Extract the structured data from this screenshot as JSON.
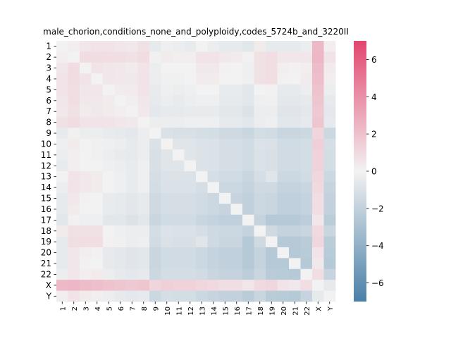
{
  "chart_data": {
    "type": "heatmap",
    "title": "male_chorion,conditions_none_and_polyploidy,codes_5724b_and_3220II",
    "xlabel": "",
    "ylabel": "",
    "categories": [
      "1",
      "2",
      "3",
      "4",
      "5",
      "6",
      "7",
      "8",
      "9",
      "10",
      "11",
      "12",
      "13",
      "14",
      "15",
      "16",
      "17",
      "18",
      "19",
      "20",
      "21",
      "22",
      "X",
      "Y"
    ],
    "colorbar": {
      "range": [
        -7,
        7
      ],
      "ticks": [
        -6,
        -4,
        -2,
        0,
        2,
        4,
        6
      ],
      "tick_labels": [
        "−6",
        "−4",
        "−2",
        "0",
        "2",
        "4",
        "6"
      ],
      "colors": {
        "negative": "#4a7fa7",
        "neutral": "#f2f2f2",
        "positive": "#e2466f"
      }
    },
    "values": [
      [
        0.0,
        0.2,
        0.5,
        0.6,
        0.6,
        0.5,
        0.4,
        0.7,
        -0.5,
        -0.2,
        -0.3,
        -0.4,
        0.0,
        -0.3,
        -0.5,
        -0.5,
        -0.7,
        0.3,
        -0.5,
        -0.5,
        -0.5,
        -0.3,
        2.3,
        0.2
      ],
      [
        0.2,
        0.0,
        0.9,
        0.9,
        0.8,
        0.8,
        0.7,
        0.9,
        -0.1,
        0.3,
        0.2,
        0.2,
        0.6,
        0.6,
        0.4,
        0.3,
        0.1,
        0.7,
        0.8,
        0.5,
        0.5,
        0.5,
        2.4,
        0.6
      ],
      [
        0.5,
        0.9,
        0.0,
        0.6,
        0.5,
        0.4,
        0.3,
        0.6,
        -0.3,
        0.0,
        0.0,
        0.0,
        0.4,
        0.4,
        0.1,
        0.0,
        -0.2,
        0.7,
        0.8,
        0.2,
        0.1,
        0.2,
        2.2,
        0.3
      ],
      [
        0.6,
        0.9,
        0.6,
        0.0,
        0.5,
        0.4,
        0.4,
        0.6,
        -0.3,
        -0.1,
        -0.1,
        0.0,
        0.3,
        0.3,
        0.0,
        0.0,
        -0.2,
        0.7,
        0.8,
        0.1,
        0.0,
        0.3,
        2.1,
        0.2
      ],
      [
        0.6,
        0.8,
        0.5,
        0.5,
        0.0,
        0.3,
        0.3,
        0.6,
        -0.4,
        -0.2,
        -0.3,
        -0.2,
        0.0,
        0.0,
        -0.4,
        -0.4,
        -0.7,
        0.0,
        0.1,
        -0.5,
        -0.5,
        -0.3,
        1.9,
        -0.3
      ],
      [
        0.5,
        0.8,
        0.4,
        0.4,
        0.3,
        0.0,
        0.2,
        0.5,
        -0.5,
        -0.3,
        -0.4,
        -0.3,
        -0.2,
        -0.2,
        -0.5,
        -0.5,
        -0.7,
        -0.2,
        -0.1,
        -0.6,
        -0.6,
        -0.5,
        1.8,
        -0.5
      ],
      [
        0.4,
        0.7,
        0.3,
        0.4,
        0.3,
        0.2,
        0.0,
        0.4,
        -0.6,
        -0.5,
        -0.5,
        -0.4,
        -0.4,
        -0.4,
        -0.7,
        -0.7,
        -0.9,
        -0.3,
        -0.3,
        -0.8,
        -0.8,
        -0.6,
        1.7,
        -0.6
      ],
      [
        0.7,
        0.9,
        0.6,
        0.6,
        0.6,
        0.5,
        0.4,
        0.0,
        -0.3,
        -0.3,
        -0.3,
        -0.2,
        -0.2,
        -0.2,
        -0.5,
        -0.5,
        -0.7,
        -0.3,
        -0.2,
        -0.7,
        -0.7,
        -0.5,
        1.8,
        -0.5
      ],
      [
        -0.5,
        -0.1,
        -0.3,
        -0.3,
        -0.4,
        -0.5,
        -0.6,
        -0.3,
        0.0,
        -1.0,
        -1.1,
        -1.1,
        -1.2,
        -1.3,
        -1.5,
        -1.5,
        -1.7,
        -1.3,
        -1.4,
        -1.7,
        -1.7,
        -1.6,
        1.2,
        -1.6
      ],
      [
        -0.2,
        0.3,
        0.0,
        -0.1,
        -0.2,
        -0.3,
        -0.5,
        -0.3,
        -1.0,
        0.0,
        -0.8,
        -0.8,
        -0.9,
        -1.0,
        -1.2,
        -1.2,
        -1.4,
        -0.9,
        -1.0,
        -1.4,
        -1.4,
        -1.3,
        1.4,
        -1.2
      ],
      [
        -0.3,
        0.2,
        0.0,
        -0.1,
        -0.3,
        -0.4,
        -0.5,
        -0.3,
        -1.1,
        -0.8,
        0.0,
        -0.8,
        -0.9,
        -1.0,
        -1.2,
        -1.2,
        -1.4,
        -1.0,
        -1.1,
        -1.4,
        -1.4,
        -1.3,
        1.3,
        -1.3
      ],
      [
        -0.4,
        0.2,
        0.0,
        0.0,
        -0.2,
        -0.3,
        -0.4,
        -0.2,
        -1.1,
        -0.8,
        -0.8,
        0.0,
        -0.9,
        -1.0,
        -1.2,
        -1.2,
        -1.4,
        -1.0,
        -1.1,
        -1.4,
        -1.4,
        -1.3,
        1.3,
        -1.3
      ],
      [
        0.0,
        0.6,
        0.4,
        0.3,
        0.0,
        -0.2,
        -0.4,
        -0.2,
        -1.2,
        -0.9,
        -0.9,
        -0.9,
        0.0,
        -1.2,
        -1.4,
        -1.4,
        -1.7,
        -1.2,
        -0.8,
        -1.6,
        -1.6,
        -1.4,
        1.1,
        -1.6
      ],
      [
        -0.3,
        0.6,
        0.4,
        0.3,
        0.0,
        -0.2,
        -0.4,
        -0.2,
        -1.3,
        -1.0,
        -1.0,
        -1.0,
        -1.2,
        0.0,
        -1.6,
        -1.6,
        -1.9,
        -1.5,
        -1.5,
        -1.9,
        -1.9,
        -1.7,
        1.0,
        -1.8
      ],
      [
        -0.5,
        0.4,
        0.1,
        0.0,
        -0.4,
        -0.5,
        -0.7,
        -0.5,
        -1.5,
        -1.2,
        -1.2,
        -1.2,
        -1.4,
        -1.6,
        0.0,
        -1.8,
        -2.1,
        -1.6,
        -1.7,
        -2.1,
        -2.1,
        -1.9,
        0.8,
        -2.0
      ],
      [
        -0.5,
        0.3,
        0.0,
        0.0,
        -0.4,
        -0.5,
        -0.7,
        -0.5,
        -1.5,
        -1.2,
        -1.2,
        -1.2,
        -1.4,
        -1.6,
        -1.8,
        0.0,
        -2.1,
        -1.6,
        -1.7,
        -2.1,
        -2.1,
        -1.9,
        0.8,
        -2.0
      ],
      [
        -0.7,
        0.1,
        -0.2,
        -0.2,
        -0.7,
        -0.7,
        -0.9,
        -0.7,
        -1.7,
        -1.4,
        -1.4,
        -1.4,
        -1.7,
        -1.9,
        -2.1,
        -2.1,
        0.0,
        -1.9,
        -2.5,
        -2.5,
        -2.5,
        -2.2,
        0.5,
        -2.3
      ],
      [
        0.3,
        0.7,
        0.7,
        0.7,
        0.0,
        -0.2,
        -0.3,
        -0.3,
        -1.3,
        -0.9,
        -1.0,
        -1.0,
        -1.2,
        -1.5,
        -1.6,
        -1.6,
        -1.9,
        0.0,
        -1.5,
        -1.9,
        -1.9,
        -1.7,
        1.0,
        -1.7
      ],
      [
        -0.5,
        0.8,
        0.8,
        0.8,
        0.1,
        -0.1,
        -0.3,
        -0.2,
        -1.4,
        -1.0,
        -1.1,
        -1.1,
        -0.8,
        -1.5,
        -1.7,
        -1.7,
        -2.5,
        -1.5,
        0.0,
        -2.5,
        -2.5,
        -2.3,
        1.1,
        -2.3
      ],
      [
        -0.5,
        0.5,
        0.2,
        0.1,
        -0.5,
        -0.6,
        -0.8,
        -0.7,
        -1.7,
        -1.4,
        -1.4,
        -1.4,
        -1.6,
        -1.9,
        -2.1,
        -2.1,
        -2.5,
        -1.9,
        -2.5,
        0.0,
        -2.5,
        -2.4,
        0.6,
        -2.4
      ],
      [
        -0.5,
        0.5,
        0.1,
        0.0,
        -0.5,
        -0.6,
        -0.8,
        -0.7,
        -1.7,
        -1.4,
        -1.4,
        -1.4,
        -1.6,
        -1.9,
        -2.1,
        -2.1,
        -2.5,
        -1.9,
        -2.5,
        -2.5,
        0.0,
        -2.5,
        0.4,
        -2.5
      ],
      [
        -0.3,
        0.5,
        0.2,
        0.3,
        -0.3,
        -0.5,
        -0.6,
        -0.5,
        -1.6,
        -1.3,
        -1.3,
        -1.3,
        -1.4,
        -1.7,
        -1.9,
        -1.9,
        -2.2,
        -1.7,
        -2.3,
        -2.4,
        -2.5,
        0.0,
        0.8,
        -1.8
      ],
      [
        2.3,
        2.4,
        2.2,
        2.1,
        1.9,
        1.8,
        1.7,
        1.8,
        1.2,
        1.4,
        1.3,
        1.3,
        1.1,
        1.0,
        0.8,
        0.8,
        0.5,
        1.0,
        1.1,
        0.6,
        0.4,
        0.8,
        0.0,
        -0.5
      ],
      [
        0.2,
        0.6,
        0.3,
        0.2,
        -0.3,
        -0.5,
        -0.6,
        -0.5,
        -1.6,
        -1.2,
        -1.3,
        -1.3,
        -1.6,
        -1.8,
        -2.0,
        -2.0,
        -2.3,
        -1.7,
        -2.3,
        -2.4,
        -2.5,
        -1.8,
        -0.5,
        0.0
      ]
    ]
  }
}
